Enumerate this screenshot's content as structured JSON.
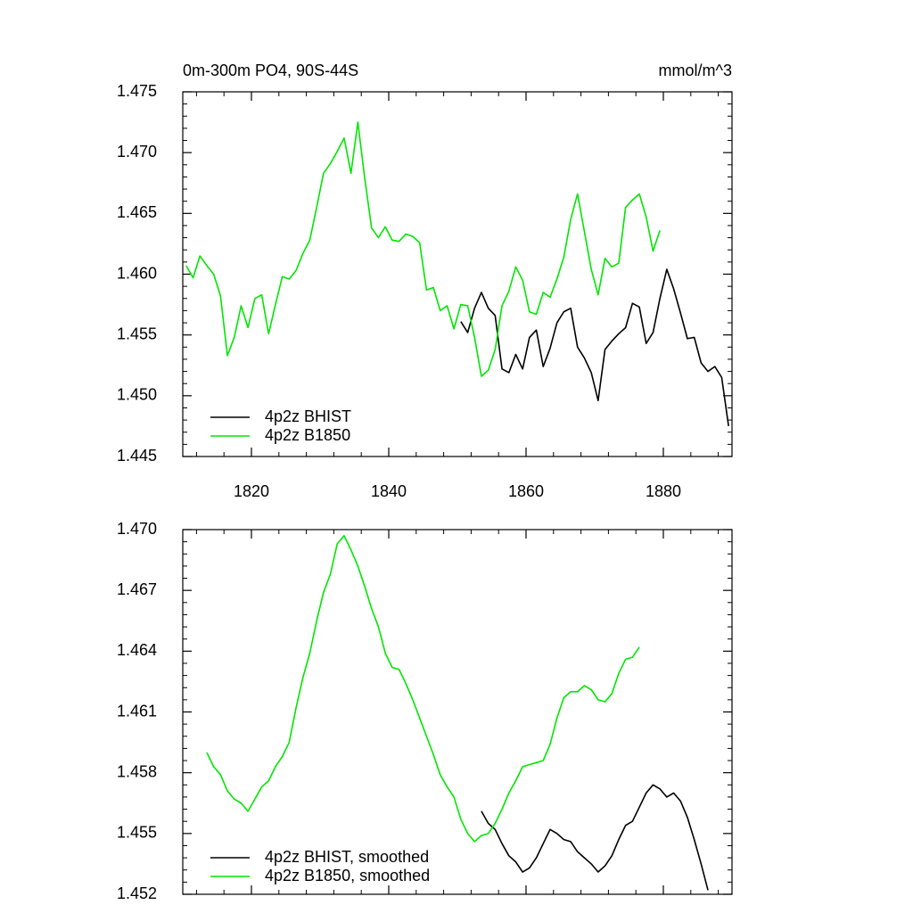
{
  "chart_data": [
    {
      "type": "line",
      "title": "0m-300m PO4, 90S-44S",
      "y_units": "mmol/m^3",
      "xlim": [
        1810,
        1890
      ],
      "xticks": [
        1820,
        1840,
        1860,
        1880
      ],
      "xtick_labels": true,
      "ylim": [
        1.445,
        1.475
      ],
      "yticks": [
        {
          "value": 1.445,
          "label": "1.445"
        },
        {
          "value": 1.45,
          "label": "1.450"
        },
        1.455,
        {
          "value": 1.46,
          "label": "1.460"
        },
        1.465,
        {
          "value": 1.47,
          "label": "1.470"
        },
        1.475
      ],
      "legend": "lower left",
      "series": [
        {
          "name": "4p2z BHIST",
          "color": "#000000",
          "x": [
            1850.5,
            1851.5,
            1852.5,
            1853.5,
            1854.5,
            1855.5,
            1856.5,
            1857.5,
            1858.5,
            1859.5,
            1860.5,
            1861.5,
            1862.5,
            1863.5,
            1864.5,
            1865.5,
            1866.5,
            1867.5,
            1868.5,
            1869.5,
            1870.5,
            1871.5,
            1872.5,
            1873.5,
            1874.5,
            1875.5,
            1876.5,
            1877.5,
            1878.5,
            1879.5,
            1880.5,
            1881.5,
            1882.5,
            1883.5,
            1884.5,
            1885.5,
            1886.5,
            1887.5,
            1888.5,
            1889.5
          ],
          "values": [
            1.4561,
            1.4552,
            1.4572,
            1.4585,
            1.4572,
            1.4566,
            1.4522,
            1.4519,
            1.4534,
            1.4522,
            1.4548,
            1.4554,
            1.4524,
            1.4539,
            1.456,
            1.4569,
            1.4572,
            1.454,
            1.4531,
            1.4519,
            1.4496,
            1.4538,
            1.4545,
            1.4551,
            1.4556,
            1.4576,
            1.4573,
            1.4543,
            1.4552,
            1.458,
            1.4604,
            1.4588,
            1.4568,
            1.4547,
            1.4548,
            1.4527,
            1.452,
            1.4524,
            1.4515,
            1.4475
          ]
        },
        {
          "name": "4p2z B1850",
          "color": "#00e600",
          "x": [
            1810.5,
            1811.5,
            1812.5,
            1813.5,
            1814.5,
            1815.5,
            1816.5,
            1817.5,
            1818.5,
            1819.5,
            1820.5,
            1821.5,
            1822.5,
            1823.5,
            1824.5,
            1825.5,
            1826.5,
            1827.5,
            1828.5,
            1829.5,
            1830.5,
            1831.5,
            1832.5,
            1833.5,
            1834.5,
            1835.5,
            1836.5,
            1837.5,
            1838.5,
            1839.5,
            1840.5,
            1841.5,
            1842.5,
            1843.5,
            1844.5,
            1845.5,
            1846.5,
            1847.5,
            1848.5,
            1849.5,
            1850.5,
            1851.5,
            1852.5,
            1853.5,
            1854.5,
            1855.5,
            1856.5,
            1857.5,
            1858.5,
            1859.5,
            1860.5,
            1861.5,
            1862.5,
            1863.5,
            1864.5,
            1865.5,
            1866.5,
            1867.5,
            1868.5,
            1869.5,
            1870.5,
            1871.5,
            1872.5,
            1873.5,
            1874.5,
            1875.5,
            1876.5,
            1877.5,
            1878.5,
            1879.5
          ],
          "values": [
            1.4607,
            1.4597,
            1.4615,
            1.4607,
            1.46,
            1.4582,
            1.4533,
            1.4548,
            1.4574,
            1.4556,
            1.458,
            1.4583,
            1.4551,
            1.4575,
            1.4598,
            1.4596,
            1.4603,
            1.4617,
            1.4628,
            1.4655,
            1.4683,
            1.4691,
            1.4701,
            1.4712,
            1.4683,
            1.4725,
            1.4679,
            1.4638,
            1.463,
            1.4639,
            1.4628,
            1.4627,
            1.4633,
            1.4631,
            1.4626,
            1.4587,
            1.4589,
            1.457,
            1.4574,
            1.4555,
            1.4575,
            1.4574,
            1.4548,
            1.4516,
            1.4521,
            1.4538,
            1.4574,
            1.4586,
            1.4606,
            1.4595,
            1.4569,
            1.4567,
            1.4585,
            1.4581,
            1.4596,
            1.4614,
            1.4645,
            1.4666,
            1.4635,
            1.4604,
            1.4583,
            1.4613,
            1.4606,
            1.4609,
            1.4655,
            1.4661,
            1.4666,
            1.4647,
            1.4619,
            1.4636
          ]
        }
      ]
    },
    {
      "type": "line",
      "xlim": [
        1810,
        1890
      ],
      "xticks": [
        1820,
        1840,
        1860,
        1880
      ],
      "xtick_labels": false,
      "ylim": [
        1.452,
        1.47
      ],
      "yticks": [
        1.452,
        1.455,
        1.458,
        1.461,
        1.464,
        1.467,
        {
          "value": 1.47,
          "label": "1.470"
        }
      ],
      "legend": "lower left",
      "series": [
        {
          "name": "4p2z BHIST, smoothed",
          "color": "#000000",
          "x": [
            1853.5,
            1854.5,
            1855.5,
            1856.5,
            1857.5,
            1858.5,
            1859.5,
            1860.5,
            1861.5,
            1862.5,
            1863.5,
            1864.5,
            1865.5,
            1866.5,
            1867.5,
            1868.5,
            1869.5,
            1870.5,
            1871.5,
            1872.5,
            1873.5,
            1874.5,
            1875.5,
            1876.5,
            1877.5,
            1878.5,
            1879.5,
            1880.5,
            1881.5,
            1882.5,
            1883.5,
            1884.5,
            1885.5,
            1886.5
          ],
          "values": [
            1.4561,
            1.4555,
            1.4552,
            1.4545,
            1.4539,
            1.4536,
            1.4531,
            1.4533,
            1.4538,
            1.4545,
            1.4552,
            1.455,
            1.4547,
            1.4546,
            1.4541,
            1.4538,
            1.4535,
            1.4531,
            1.4534,
            1.4539,
            1.4547,
            1.4554,
            1.4556,
            1.4563,
            1.457,
            1.4574,
            1.4572,
            1.4568,
            1.457,
            1.4566,
            1.4558,
            1.4547,
            1.4535,
            1.4522
          ]
        },
        {
          "name": "4p2z B1850, smoothed",
          "color": "#00e600",
          "x": [
            1813.5,
            1814.5,
            1815.5,
            1816.5,
            1817.5,
            1818.5,
            1819.5,
            1820.5,
            1821.5,
            1822.5,
            1823.5,
            1824.5,
            1825.5,
            1826.5,
            1827.5,
            1828.5,
            1829.5,
            1830.5,
            1831.5,
            1832.5,
            1833.5,
            1834.5,
            1835.5,
            1836.5,
            1837.5,
            1838.5,
            1839.5,
            1840.5,
            1841.5,
            1842.5,
            1843.5,
            1844.5,
            1845.5,
            1846.5,
            1847.5,
            1848.5,
            1849.5,
            1850.5,
            1851.5,
            1852.5,
            1853.5,
            1854.5,
            1855.5,
            1856.5,
            1857.5,
            1858.5,
            1859.5,
            1860.5,
            1861.5,
            1862.5,
            1863.5,
            1864.5,
            1865.5,
            1866.5,
            1867.5,
            1868.5,
            1869.5,
            1870.5,
            1871.5,
            1872.5,
            1873.5,
            1874.5,
            1875.5,
            1876.5
          ],
          "values": [
            1.459,
            1.4583,
            1.4579,
            1.4571,
            1.4567,
            1.4565,
            1.4561,
            1.4567,
            1.4573,
            1.4576,
            1.4583,
            1.4588,
            1.4595,
            1.4612,
            1.4627,
            1.4639,
            1.4655,
            1.4669,
            1.4678,
            1.4693,
            1.4697,
            1.469,
            1.4682,
            1.4672,
            1.4661,
            1.4652,
            1.4639,
            1.4632,
            1.4631,
            1.4624,
            1.4616,
            1.4607,
            1.4598,
            1.4589,
            1.4579,
            1.4573,
            1.4568,
            1.4557,
            1.455,
            1.4546,
            1.4549,
            1.455,
            1.4555,
            1.4562,
            1.457,
            1.4576,
            1.4583,
            1.4584,
            1.4585,
            1.4586,
            1.4594,
            1.4607,
            1.4617,
            1.462,
            1.462,
            1.4623,
            1.4621,
            1.4616,
            1.4615,
            1.4619,
            1.4629,
            1.4636,
            1.4637,
            1.4642
          ]
        }
      ]
    }
  ]
}
